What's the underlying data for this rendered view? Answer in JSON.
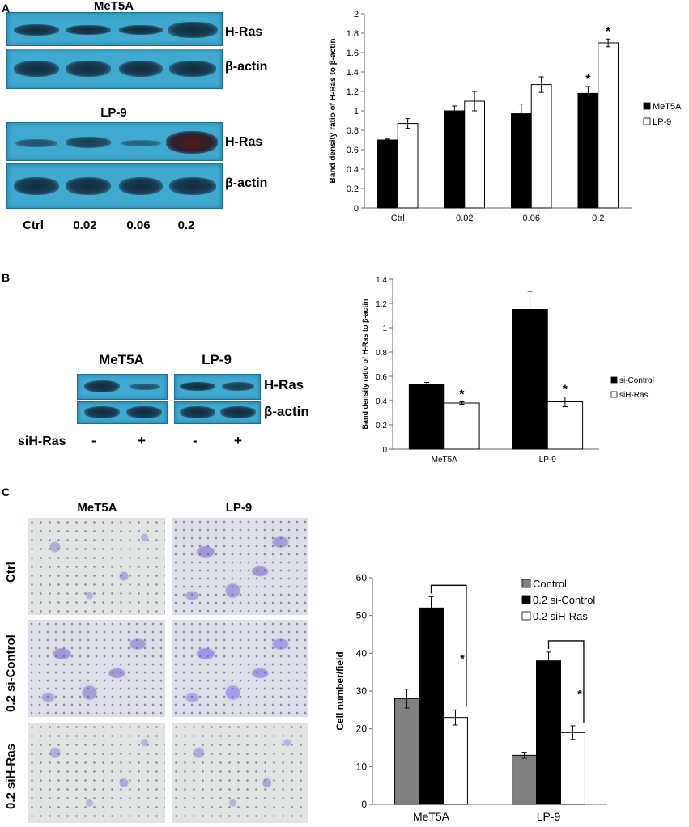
{
  "panels": {
    "a": {
      "letter": "A",
      "blots": [
        {
          "title": "MeT5A",
          "bands": [
            "H-Ras",
            "β-actin"
          ]
        },
        {
          "title": "LP-9",
          "bands": [
            "H-Ras",
            "β-actin"
          ]
        }
      ],
      "lanes": [
        "Ctrl",
        "0.02",
        "0.06",
        "0.2"
      ]
    },
    "b": {
      "letter": "B",
      "blots": [
        {
          "title": "MeT5A"
        },
        {
          "title": "LP-9"
        }
      ],
      "band_labels": [
        "H-Ras",
        "β-actin"
      ],
      "sirna_label": "siH-Ras",
      "lane_signs": [
        "-",
        "+",
        "-",
        "+"
      ]
    },
    "c": {
      "letter": "C",
      "col_titles": [
        "MeT5A",
        "LP-9"
      ],
      "row_labels": [
        "Ctrl",
        "0.2 si-Control",
        "0.2 siH-Ras"
      ]
    }
  },
  "chart_data": [
    {
      "type": "bar",
      "ylabel": "Band density ratio of H-Ras to β-actin",
      "categories": [
        "Ctrl",
        "0.02",
        "0.06",
        "0.2"
      ],
      "ylim": [
        0,
        2
      ],
      "yticks": [
        "0",
        "0.2",
        "0.4",
        "0.6",
        "0.8",
        "1",
        "1.2",
        "1.4",
        "1.6",
        "1.8",
        "2"
      ],
      "legend": "right",
      "series": [
        {
          "name": "MeT5A",
          "color": "#000000",
          "values": [
            0.7,
            1.0,
            0.97,
            1.18
          ],
          "errors": [
            0.01,
            0.05,
            0.1,
            0.07
          ]
        },
        {
          "name": "LP-9",
          "color": "#ffffff",
          "values": [
            0.87,
            1.1,
            1.27,
            1.7
          ],
          "errors": [
            0.05,
            0.1,
            0.08,
            0.04
          ]
        }
      ],
      "annotations": [
        {
          "text": "*",
          "category": "0.2",
          "series": "MeT5A"
        },
        {
          "text": "*",
          "category": "0.2",
          "series": "LP-9"
        }
      ]
    },
    {
      "type": "bar",
      "ylabel": "Band density ratio of H-Ras to β-actin",
      "categories": [
        "MeT5A",
        "LP-9"
      ],
      "ylim": [
        0,
        1.4
      ],
      "yticks": [
        "0",
        "0.2",
        "0.4",
        "0.6",
        "0.8",
        "1",
        "1.2",
        "1.4"
      ],
      "legend": "right",
      "series": [
        {
          "name": "si-Control",
          "color": "#000000",
          "values": [
            0.53,
            1.15
          ],
          "errors": [
            0.02,
            0.15
          ]
        },
        {
          "name": "siH-Ras",
          "color": "#ffffff",
          "values": [
            0.38,
            0.39
          ],
          "errors": [
            0.01,
            0.04
          ]
        }
      ],
      "annotations": [
        {
          "text": "*",
          "category": "MeT5A",
          "series": "siH-Ras"
        },
        {
          "text": "*",
          "category": "LP-9",
          "series": "siH-Ras"
        }
      ]
    },
    {
      "type": "bar",
      "ylabel": "Cell number/field",
      "categories": [
        "MeT5A",
        "LP-9"
      ],
      "ylim": [
        0,
        60
      ],
      "yticks": [
        "0",
        "10",
        "20",
        "30",
        "40",
        "50",
        "60"
      ],
      "legend": "top-right",
      "series": [
        {
          "name": "Control",
          "color": "#808080",
          "values": [
            28,
            13
          ],
          "errors": [
            2.5,
            0.8
          ]
        },
        {
          "name": "0.2 si-Control",
          "color": "#000000",
          "values": [
            52,
            38
          ],
          "errors": [
            3,
            2.3
          ]
        },
        {
          "name": "0.2 siH-Ras",
          "color": "#ffffff",
          "values": [
            23,
            19
          ],
          "errors": [
            2,
            1.8
          ]
        }
      ],
      "annotations": [
        {
          "text": "*",
          "category": "MeT5A",
          "series": "0.2 siH-Ras"
        },
        {
          "text": "*",
          "category": "LP-9",
          "series": "0.2 siH-Ras"
        }
      ]
    }
  ]
}
